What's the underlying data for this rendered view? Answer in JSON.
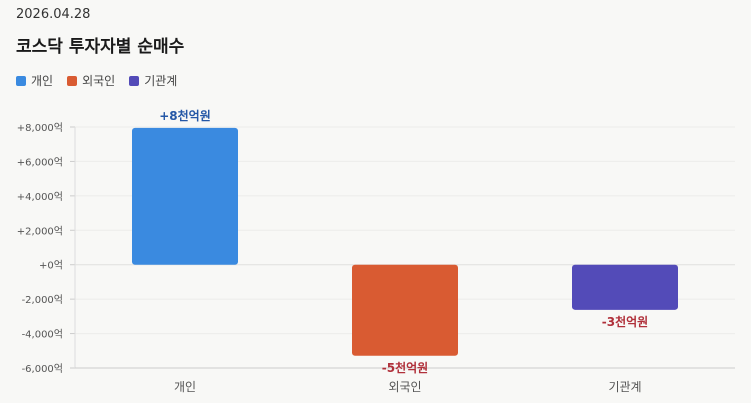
{
  "header": {
    "date": "2026.04.28",
    "title": "코스닥 투자자별 순매수"
  },
  "colors": {
    "개인": "#3a8ae0",
    "외국인": "#d95b32",
    "기관계": "#534bb8",
    "positive_label": "#2457a6",
    "negative_label": "#b0303a"
  },
  "chart_data": {
    "type": "bar",
    "title": "코스닥 투자자별 순매수",
    "categories": [
      "개인",
      "외국인",
      "기관계"
    ],
    "values": [
      7950,
      -5290,
      -2620
    ],
    "unit": "억",
    "data_labels": [
      "+8천억원",
      "-5천억원",
      "-3천억원"
    ],
    "ylim": [
      -6000,
      8000
    ],
    "yticks": [
      8000,
      6000,
      4000,
      2000,
      0,
      -2000,
      -4000,
      -6000
    ],
    "ytick_labels": [
      "+8,000억",
      "+6,000억",
      "+4,000억",
      "+2,000억",
      "+0억",
      "-2,000억",
      "-4,000억",
      "-6,000억"
    ],
    "legend": [
      "개인",
      "외국인",
      "기관계"
    ],
    "legend_position": "top-left",
    "grid": true
  }
}
